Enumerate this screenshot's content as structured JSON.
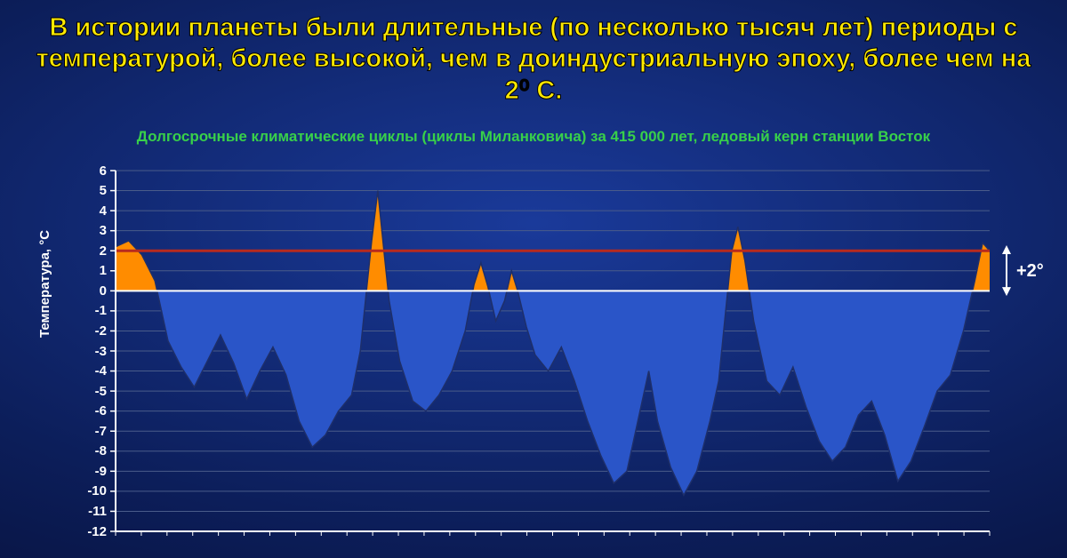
{
  "title": {
    "text": "В истории планеты были длительные (по несколько тысяч лет) периоды с температурой, более высокой, чем в доиндустриальную эпоху, более чем на 2⁰ С.",
    "color": "#ffe900",
    "fontsize": 29
  },
  "subtitle": {
    "text": "Долгосрочные климатические циклы (циклы Миланковича) за 415 000 лет, ледовый керн станции Восток",
    "color": "#38d04a",
    "fontsize": 17
  },
  "chart": {
    "type": "area",
    "ylabel": "Температура, °С",
    "ylim": [
      -12,
      6
    ],
    "ytick_step": 1,
    "yticks": [
      6,
      5,
      4,
      3,
      2,
      1,
      0,
      -1,
      -2,
      -3,
      -4,
      -5,
      -6,
      -7,
      -8,
      -9,
      -10,
      -11,
      -12
    ],
    "ytick_fontsize": 15,
    "xlim": [
      0,
      100
    ],
    "zero_line": 0,
    "ref_line": 2,
    "ref_line_color": "#b82a1e",
    "ref_line_width": 3,
    "ref_annotation": "+2°",
    "ref_annotation_fontsize": 20,
    "grid_color": "#4a5c8a",
    "grid_width": 1,
    "axis_color": "#ffffff",
    "axis_width": 2,
    "minor_tick_len": 5,
    "below_fill": "#2a55c8",
    "above_fill": "#ff8c00",
    "line_color": "#1e2f6a",
    "line_width": 1.5,
    "background": "transparent",
    "series": [
      [
        0,
        2.2
      ],
      [
        1.5,
        2.5
      ],
      [
        3,
        1.8
      ],
      [
        4.5,
        0.5
      ],
      [
        6,
        -2.5
      ],
      [
        7.5,
        -3.8
      ],
      [
        9,
        -4.8
      ],
      [
        10.5,
        -3.5
      ],
      [
        12,
        -2.2
      ],
      [
        13.5,
        -3.6
      ],
      [
        15,
        -5.4
      ],
      [
        16.5,
        -4.0
      ],
      [
        18,
        -2.8
      ],
      [
        19.5,
        -4.2
      ],
      [
        21,
        -6.5
      ],
      [
        22.5,
        -7.8
      ],
      [
        24,
        -7.2
      ],
      [
        25.5,
        -6.0
      ],
      [
        27,
        -5.2
      ],
      [
        28,
        -3.0
      ],
      [
        28.7,
        0
      ],
      [
        29.3,
        2.5
      ],
      [
        30,
        5.0
      ],
      [
        30.7,
        2.0
      ],
      [
        31.3,
        -0.5
      ],
      [
        32.5,
        -3.5
      ],
      [
        34,
        -5.5
      ],
      [
        35.5,
        -6.0
      ],
      [
        37,
        -5.2
      ],
      [
        38.5,
        -4.0
      ],
      [
        40,
        -2.0
      ],
      [
        41,
        0.3
      ],
      [
        41.8,
        1.4
      ],
      [
        42.6,
        0.2
      ],
      [
        43.5,
        -1.5
      ],
      [
        44.5,
        -0.5
      ],
      [
        45.3,
        1.0
      ],
      [
        46,
        0.0
      ],
      [
        47,
        -1.8
      ],
      [
        48,
        -3.2
      ],
      [
        49.5,
        -4.0
      ],
      [
        51,
        -2.8
      ],
      [
        52.5,
        -4.5
      ],
      [
        54,
        -6.5
      ],
      [
        55.5,
        -8.2
      ],
      [
        57,
        -9.6
      ],
      [
        58.5,
        -9.0
      ],
      [
        60,
        -6.0
      ],
      [
        61,
        -4.0
      ],
      [
        62,
        -6.5
      ],
      [
        63.5,
        -8.8
      ],
      [
        65,
        -10.2
      ],
      [
        66.5,
        -9.0
      ],
      [
        68,
        -6.5
      ],
      [
        69,
        -4.5
      ],
      [
        69.8,
        -1.0
      ],
      [
        70.5,
        2.0
      ],
      [
        71.2,
        3.2
      ],
      [
        72,
        1.5
      ],
      [
        73,
        -1.5
      ],
      [
        74.5,
        -4.5
      ],
      [
        76,
        -5.2
      ],
      [
        77.5,
        -3.8
      ],
      [
        79,
        -5.8
      ],
      [
        80.5,
        -7.5
      ],
      [
        82,
        -8.5
      ],
      [
        83.5,
        -7.8
      ],
      [
        85,
        -6.2
      ],
      [
        86.5,
        -5.5
      ],
      [
        88,
        -7.2
      ],
      [
        89.5,
        -9.5
      ],
      [
        91,
        -8.5
      ],
      [
        92.5,
        -6.8
      ],
      [
        94,
        -5.0
      ],
      [
        95.5,
        -4.2
      ],
      [
        97,
        -2.0
      ],
      [
        98.3,
        0.5
      ],
      [
        99.2,
        2.4
      ],
      [
        100,
        2.0
      ]
    ]
  }
}
